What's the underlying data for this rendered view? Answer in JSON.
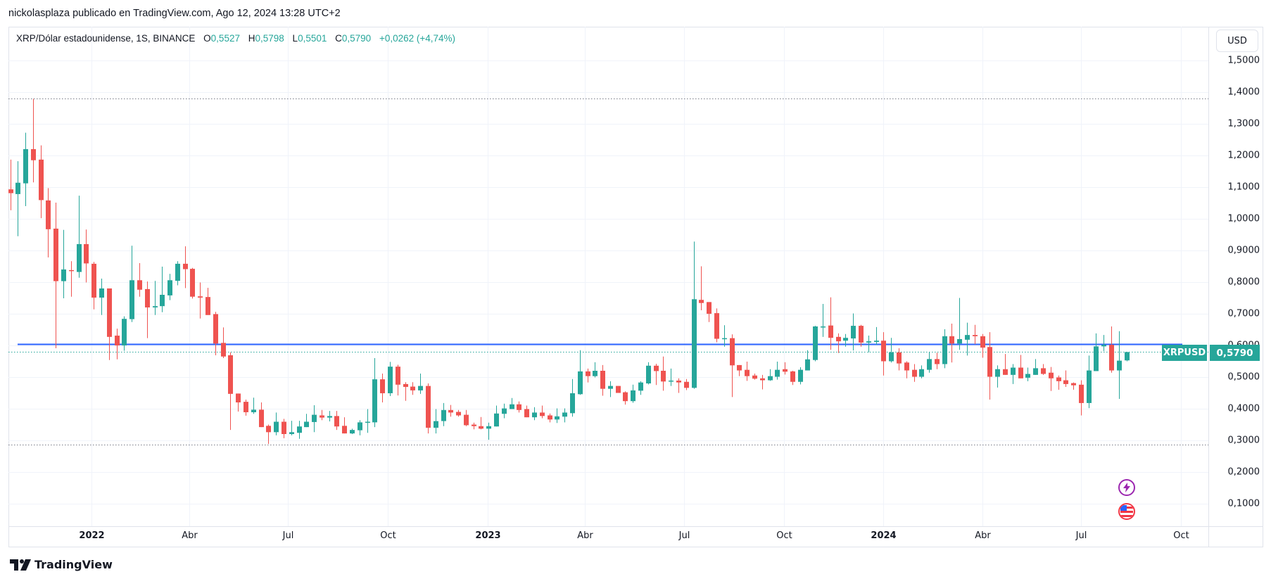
{
  "header": {
    "published": "nickolasplaza publicado en TradingView.com, Ago 12, 2024 13:28 UTC+2"
  },
  "legend": {
    "symbol": "XRP/Dólar estadounidense, 1S, BINANCE",
    "o_label": "O",
    "o_value": "0,5527",
    "h_label": "H",
    "h_value": "0,5798",
    "l_label": "L",
    "l_value": "0,5501",
    "c_label": "C",
    "c_value": "0,5790",
    "change": "+0,0262 (+4,74%)"
  },
  "price_axis": {
    "currency_button": "USD",
    "symbol_tag": "XRPUSD",
    "last_price_tag": "0,5790"
  },
  "footer": {
    "brand": "TradingView"
  },
  "events": [
    {
      "icon": "lightning-icon",
      "color": "#9c27b0"
    },
    {
      "icon": "us-flag-icon",
      "color": "#f23645"
    }
  ],
  "colors": {
    "up": "#26a69a",
    "down": "#ef5350",
    "hline": "#2962ff",
    "grid": "#f0f3fa"
  },
  "chart_data": {
    "type": "candlestick",
    "title": "XRP/Dólar estadounidense, 1S, BINANCE",
    "interval": "1W",
    "first_week": "2021-10-18",
    "ylim": [
      0.06,
      1.53
    ],
    "grid": true,
    "y_ticks": [
      {
        "value": 1.5,
        "label": "1,5000"
      },
      {
        "value": 1.4,
        "label": "1,4000"
      },
      {
        "value": 1.3,
        "label": "1,3000"
      },
      {
        "value": 1.2,
        "label": "1,2000"
      },
      {
        "value": 1.1,
        "label": "1,1000"
      },
      {
        "value": 1.0,
        "label": "1,0000"
      },
      {
        "value": 0.9,
        "label": "0,9000"
      },
      {
        "value": 0.8,
        "label": "0,8000"
      },
      {
        "value": 0.7,
        "label": "0,7000"
      },
      {
        "value": 0.6,
        "label": "0,6000"
      },
      {
        "value": 0.5,
        "label": "0,5000"
      },
      {
        "value": 0.4,
        "label": "0,4000"
      },
      {
        "value": 0.3,
        "label": "0,3000"
      },
      {
        "value": 0.2,
        "label": "0,2000"
      },
      {
        "value": 0.1,
        "label": "0,1000"
      }
    ],
    "x_ticks": [
      {
        "date": "2022-01-01",
        "label": "2022",
        "year": true
      },
      {
        "date": "2022-04-01",
        "label": "Abr"
      },
      {
        "date": "2022-07-01",
        "label": "Jul"
      },
      {
        "date": "2022-10-01",
        "label": "Oct"
      },
      {
        "date": "2023-01-01",
        "label": "2023",
        "year": true
      },
      {
        "date": "2023-04-01",
        "label": "Abr"
      },
      {
        "date": "2023-07-01",
        "label": "Jul"
      },
      {
        "date": "2023-10-01",
        "label": "Oct"
      },
      {
        "date": "2024-01-01",
        "label": "2024",
        "year": true
      },
      {
        "date": "2024-04-01",
        "label": "Abr"
      },
      {
        "date": "2024-07-01",
        "label": "Jul"
      },
      {
        "date": "2024-10-01",
        "label": "Oct"
      }
    ],
    "horizontal_lines": [
      {
        "price": 0.605,
        "style": "solid",
        "color": "#2962ff"
      },
      {
        "price": 1.38,
        "style": "dotted",
        "color": "#787b86"
      },
      {
        "price": 0.287,
        "style": "dotted",
        "color": "#787b86"
      },
      {
        "price": 0.579,
        "style": "dotted",
        "color": "#26a69a"
      }
    ],
    "ohlc": [
      [
        1.093,
        1.187,
        1.027,
        1.081
      ],
      [
        1.078,
        1.182,
        0.945,
        1.114
      ],
      [
        1.112,
        1.272,
        1.04,
        1.22
      ],
      [
        1.22,
        1.379,
        1.115,
        1.185
      ],
      [
        1.187,
        1.232,
        1.002,
        1.059
      ],
      [
        1.058,
        1.097,
        0.878,
        0.967
      ],
      [
        0.969,
        1.051,
        0.591,
        0.803
      ],
      [
        0.803,
        0.965,
        0.749,
        0.84
      ],
      [
        0.838,
        0.866,
        0.754,
        0.835
      ],
      [
        0.832,
        1.073,
        0.814,
        0.92
      ],
      [
        0.92,
        0.966,
        0.799,
        0.859
      ],
      [
        0.858,
        0.864,
        0.714,
        0.751
      ],
      [
        0.751,
        0.811,
        0.696,
        0.78
      ],
      [
        0.78,
        0.78,
        0.554,
        0.627
      ],
      [
        0.631,
        0.653,
        0.556,
        0.6
      ],
      [
        0.6,
        0.692,
        0.583,
        0.684
      ],
      [
        0.683,
        0.915,
        0.674,
        0.806
      ],
      [
        0.806,
        0.86,
        0.754,
        0.776
      ],
      [
        0.778,
        0.802,
        0.623,
        0.72
      ],
      [
        0.72,
        0.804,
        0.696,
        0.724
      ],
      [
        0.724,
        0.849,
        0.705,
        0.76
      ],
      [
        0.758,
        0.826,
        0.743,
        0.806
      ],
      [
        0.804,
        0.866,
        0.79,
        0.858
      ],
      [
        0.858,
        0.913,
        0.781,
        0.841
      ],
      [
        0.842,
        0.845,
        0.748,
        0.754
      ],
      [
        0.755,
        0.799,
        0.685,
        0.751
      ],
      [
        0.753,
        0.782,
        0.696,
        0.696
      ],
      [
        0.699,
        0.706,
        0.569,
        0.606
      ],
      [
        0.608,
        0.657,
        0.56,
        0.565
      ],
      [
        0.569,
        0.578,
        0.333,
        0.447
      ],
      [
        0.448,
        0.448,
        0.391,
        0.42
      ],
      [
        0.422,
        0.429,
        0.378,
        0.389
      ],
      [
        0.389,
        0.435,
        0.384,
        0.397
      ],
      [
        0.397,
        0.42,
        0.342,
        0.342
      ],
      [
        0.346,
        0.35,
        0.289,
        0.326
      ],
      [
        0.326,
        0.388,
        0.316,
        0.359
      ],
      [
        0.359,
        0.368,
        0.307,
        0.32
      ],
      [
        0.32,
        0.362,
        0.316,
        0.326
      ],
      [
        0.324,
        0.362,
        0.305,
        0.344
      ],
      [
        0.342,
        0.384,
        0.342,
        0.359
      ],
      [
        0.358,
        0.411,
        0.326,
        0.381
      ],
      [
        0.379,
        0.396,
        0.364,
        0.372
      ],
      [
        0.372,
        0.393,
        0.36,
        0.377
      ],
      [
        0.377,
        0.393,
        0.333,
        0.344
      ],
      [
        0.346,
        0.373,
        0.322,
        0.322
      ],
      [
        0.322,
        0.337,
        0.32,
        0.333
      ],
      [
        0.332,
        0.364,
        0.316,
        0.357
      ],
      [
        0.356,
        0.399,
        0.324,
        0.359
      ],
      [
        0.357,
        0.56,
        0.342,
        0.493
      ],
      [
        0.493,
        0.511,
        0.42,
        0.449
      ],
      [
        0.449,
        0.548,
        0.44,
        0.533
      ],
      [
        0.533,
        0.539,
        0.442,
        0.476
      ],
      [
        0.478,
        0.484,
        0.425,
        0.469
      ],
      [
        0.47,
        0.484,
        0.444,
        0.458
      ],
      [
        0.458,
        0.511,
        0.447,
        0.472
      ],
      [
        0.472,
        0.48,
        0.322,
        0.34
      ],
      [
        0.34,
        0.399,
        0.322,
        0.361
      ],
      [
        0.361,
        0.418,
        0.345,
        0.396
      ],
      [
        0.396,
        0.412,
        0.375,
        0.388
      ],
      [
        0.39,
        0.396,
        0.375,
        0.379
      ],
      [
        0.381,
        0.396,
        0.345,
        0.348
      ],
      [
        0.35,
        0.356,
        0.335,
        0.345
      ],
      [
        0.345,
        0.374,
        0.335,
        0.337
      ],
      [
        0.337,
        0.356,
        0.302,
        0.345
      ],
      [
        0.344,
        0.41,
        0.344,
        0.385
      ],
      [
        0.384,
        0.416,
        0.37,
        0.401
      ],
      [
        0.399,
        0.434,
        0.399,
        0.414
      ],
      [
        0.414,
        0.423,
        0.388,
        0.396
      ],
      [
        0.399,
        0.41,
        0.373,
        0.373
      ],
      [
        0.373,
        0.405,
        0.364,
        0.388
      ],
      [
        0.388,
        0.41,
        0.37,
        0.377
      ],
      [
        0.379,
        0.385,
        0.357,
        0.366
      ],
      [
        0.366,
        0.401,
        0.355,
        0.376
      ],
      [
        0.375,
        0.401,
        0.357,
        0.388
      ],
      [
        0.386,
        0.494,
        0.375,
        0.449
      ],
      [
        0.446,
        0.585,
        0.444,
        0.518
      ],
      [
        0.518,
        0.527,
        0.483,
        0.503
      ],
      [
        0.503,
        0.547,
        0.499,
        0.52
      ],
      [
        0.52,
        0.538,
        0.441,
        0.463
      ],
      [
        0.463,
        0.487,
        0.437,
        0.472
      ],
      [
        0.472,
        0.472,
        0.45,
        0.45
      ],
      [
        0.452,
        0.455,
        0.413,
        0.424
      ],
      [
        0.424,
        0.476,
        0.419,
        0.458
      ],
      [
        0.457,
        0.487,
        0.444,
        0.483
      ],
      [
        0.48,
        0.547,
        0.477,
        0.536
      ],
      [
        0.536,
        0.542,
        0.475,
        0.519
      ],
      [
        0.52,
        0.565,
        0.457,
        0.486
      ],
      [
        0.486,
        0.527,
        0.472,
        0.489
      ],
      [
        0.489,
        0.496,
        0.45,
        0.483
      ],
      [
        0.485,
        0.494,
        0.459,
        0.466
      ],
      [
        0.466,
        0.928,
        0.463,
        0.746
      ],
      [
        0.744,
        0.85,
        0.711,
        0.734
      ],
      [
        0.737,
        0.737,
        0.674,
        0.7
      ],
      [
        0.702,
        0.717,
        0.61,
        0.621
      ],
      [
        0.621,
        0.664,
        0.596,
        0.623
      ],
      [
        0.623,
        0.635,
        0.437,
        0.537
      ],
      [
        0.538,
        0.538,
        0.503,
        0.521
      ],
      [
        0.523,
        0.549,
        0.488,
        0.503
      ],
      [
        0.505,
        0.511,
        0.492,
        0.495
      ],
      [
        0.496,
        0.507,
        0.461,
        0.49
      ],
      [
        0.49,
        0.525,
        0.488,
        0.503
      ],
      [
        0.501,
        0.549,
        0.492,
        0.523
      ],
      [
        0.525,
        0.547,
        0.508,
        0.517
      ],
      [
        0.518,
        0.52,
        0.475,
        0.485
      ],
      [
        0.485,
        0.531,
        0.477,
        0.523
      ],
      [
        0.521,
        0.585,
        0.521,
        0.556
      ],
      [
        0.554,
        0.662,
        0.55,
        0.66
      ],
      [
        0.658,
        0.731,
        0.627,
        0.66
      ],
      [
        0.663,
        0.752,
        0.586,
        0.624
      ],
      [
        0.627,
        0.638,
        0.576,
        0.613
      ],
      [
        0.615,
        0.636,
        0.596,
        0.624
      ],
      [
        0.622,
        0.701,
        0.584,
        0.662
      ],
      [
        0.662,
        0.665,
        0.596,
        0.609
      ],
      [
        0.609,
        0.631,
        0.578,
        0.613
      ],
      [
        0.611,
        0.658,
        0.602,
        0.615
      ],
      [
        0.615,
        0.642,
        0.505,
        0.55
      ],
      [
        0.55,
        0.624,
        0.546,
        0.578
      ],
      [
        0.578,
        0.591,
        0.521,
        0.543
      ],
      [
        0.546,
        0.55,
        0.496,
        0.521
      ],
      [
        0.523,
        0.541,
        0.485,
        0.501
      ],
      [
        0.501,
        0.537,
        0.496,
        0.525
      ],
      [
        0.523,
        0.579,
        0.514,
        0.557
      ],
      [
        0.557,
        0.577,
        0.525,
        0.541
      ],
      [
        0.541,
        0.651,
        0.528,
        0.629
      ],
      [
        0.629,
        0.669,
        0.546,
        0.606
      ],
      [
        0.606,
        0.75,
        0.586,
        0.62
      ],
      [
        0.618,
        0.672,
        0.568,
        0.633
      ],
      [
        0.633,
        0.665,
        0.604,
        0.629
      ],
      [
        0.629,
        0.636,
        0.561,
        0.593
      ],
      [
        0.595,
        0.642,
        0.429,
        0.501
      ],
      [
        0.501,
        0.537,
        0.467,
        0.525
      ],
      [
        0.525,
        0.573,
        0.507,
        0.507
      ],
      [
        0.507,
        0.541,
        0.478,
        0.53
      ],
      [
        0.53,
        0.57,
        0.496,
        0.496
      ],
      [
        0.498,
        0.53,
        0.487,
        0.51
      ],
      [
        0.507,
        0.557,
        0.507,
        0.528
      ],
      [
        0.528,
        0.541,
        0.507,
        0.51
      ],
      [
        0.514,
        0.532,
        0.456,
        0.496
      ],
      [
        0.499,
        0.505,
        0.46,
        0.487
      ],
      [
        0.49,
        0.521,
        0.469,
        0.478
      ],
      [
        0.481,
        0.483,
        0.46,
        0.474
      ],
      [
        0.476,
        0.49,
        0.379,
        0.418
      ],
      [
        0.418,
        0.568,
        0.402,
        0.521
      ],
      [
        0.519,
        0.638,
        0.519,
        0.597
      ],
      [
        0.597,
        0.633,
        0.582,
        0.602
      ],
      [
        0.602,
        0.66,
        0.514,
        0.521
      ],
      [
        0.521,
        0.645,
        0.431,
        0.552
      ],
      [
        0.5527,
        0.5798,
        0.5501,
        0.579
      ]
    ]
  }
}
